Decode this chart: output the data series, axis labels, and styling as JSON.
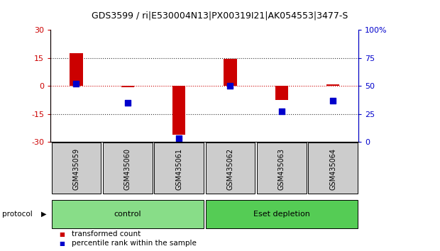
{
  "title": "GDS3599 / ri|E530004N13|PX00319I21|AK054553|3477-S",
  "samples": [
    "GSM435059",
    "GSM435060",
    "GSM435061",
    "GSM435062",
    "GSM435063",
    "GSM435064"
  ],
  "transformed_count": [
    17.5,
    -0.5,
    -26.0,
    14.5,
    -7.5,
    1.0
  ],
  "percentile_rank": [
    52,
    35,
    3,
    50,
    27,
    37
  ],
  "ylim_left": [
    -30,
    30
  ],
  "ylim_right": [
    0,
    100
  ],
  "yticks_left": [
    -30,
    -15,
    0,
    15,
    30
  ],
  "ytick_labels_left": [
    "-30",
    "-15",
    "0",
    "15",
    "30"
  ],
  "yticks_right": [
    0,
    25,
    50,
    75,
    100
  ],
  "ytick_labels_right": [
    "0",
    "25",
    "50",
    "75",
    "100%"
  ],
  "hlines": [
    15,
    -15
  ],
  "hline_zero_color": "#cc0000",
  "hline_dotted_color": "#333333",
  "bar_color": "#cc0000",
  "dot_color": "#0000cc",
  "groups": [
    {
      "label": "control",
      "n": 3,
      "color": "#88dd88"
    },
    {
      "label": "Eset depletion",
      "n": 3,
      "color": "#55cc55"
    }
  ],
  "legend_items": [
    {
      "label": "transformed count",
      "color": "#cc0000"
    },
    {
      "label": "percentile rank within the sample",
      "color": "#0000cc"
    }
  ],
  "protocol_label": "protocol",
  "bg_color": "#ffffff",
  "plot_area_color": "#ffffff",
  "sample_box_color": "#cccccc",
  "bar_width": 0.25,
  "dot_size": 40,
  "title_fontsize": 9,
  "axis_fontsize": 8,
  "label_fontsize": 7.5,
  "sample_fontsize": 7
}
